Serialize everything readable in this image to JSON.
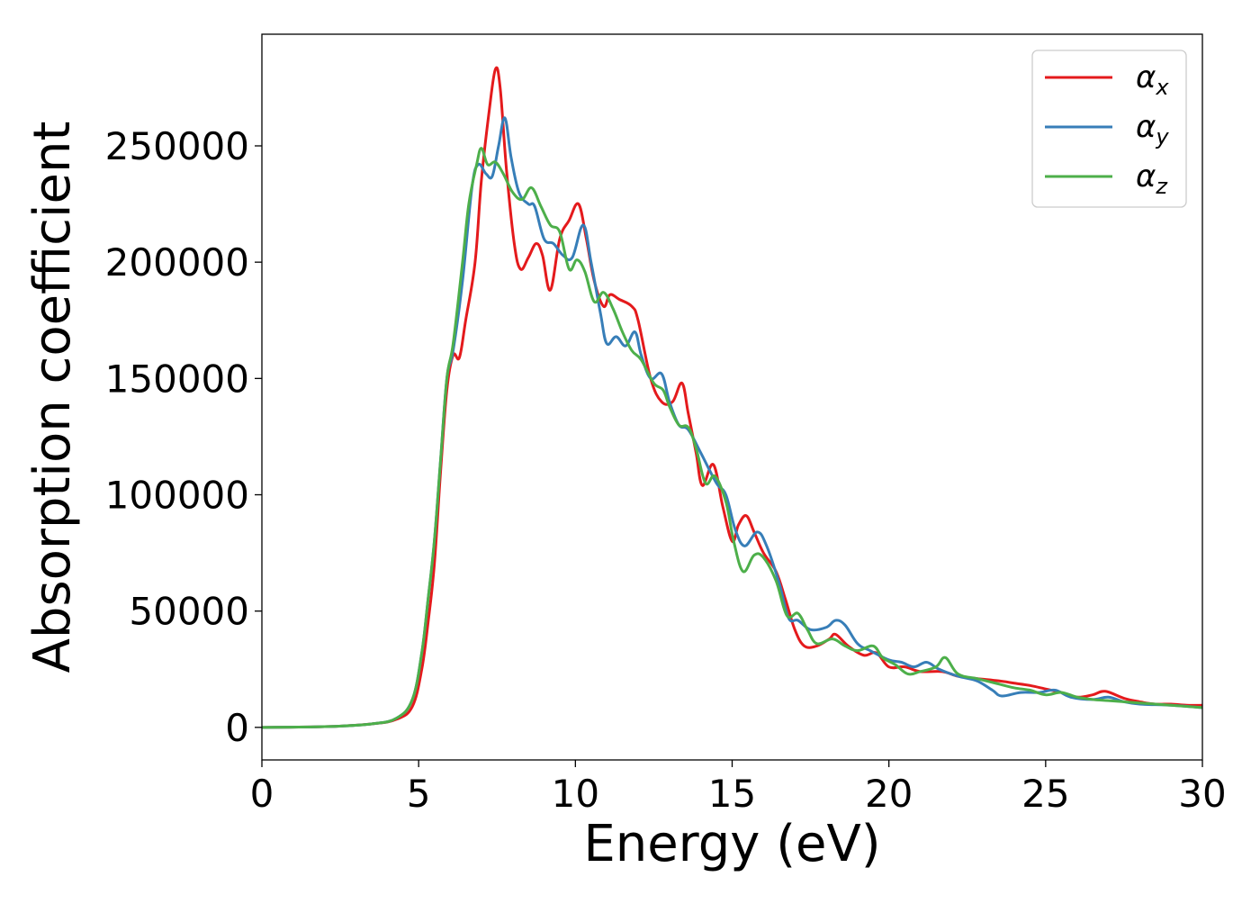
{
  "chart_data": {
    "type": "line",
    "title": "",
    "xlabel": "Energy (eV)",
    "ylabel": "Absorption coefficient",
    "xlim": [
      0,
      30
    ],
    "ylim": [
      -14000,
      298000
    ],
    "xticks": [
      0,
      5,
      10,
      15,
      20,
      25,
      30
    ],
    "xtick_labels": [
      "0",
      "5",
      "10",
      "15",
      "20",
      "25",
      "30"
    ],
    "yticks": [
      0,
      50000,
      100000,
      150000,
      200000,
      250000
    ],
    "ytick_labels": [
      "0",
      "50000",
      "100000",
      "150000",
      "200000",
      "250000"
    ],
    "grid": false,
    "legend_position": "top-right",
    "series": [
      {
        "name": "α_x",
        "legend_main": "α",
        "legend_sub": "x",
        "color": "#e41a1c",
        "points": [
          [
            0,
            0
          ],
          [
            2,
            300
          ],
          [
            3.5,
            1500
          ],
          [
            4.3,
            3500
          ],
          [
            4.8,
            9000
          ],
          [
            5.1,
            25000
          ],
          [
            5.3,
            45000
          ],
          [
            5.5,
            70000
          ],
          [
            5.7,
            110000
          ],
          [
            5.9,
            145000
          ],
          [
            6.1,
            160000
          ],
          [
            6.3,
            159000
          ],
          [
            6.5,
            175000
          ],
          [
            6.8,
            200000
          ],
          [
            7.0,
            235000
          ],
          [
            7.25,
            265000
          ],
          [
            7.45,
            283000
          ],
          [
            7.6,
            275000
          ],
          [
            7.8,
            240000
          ],
          [
            8.05,
            208000
          ],
          [
            8.25,
            197000
          ],
          [
            8.5,
            202000
          ],
          [
            8.75,
            208000
          ],
          [
            8.95,
            203000
          ],
          [
            9.2,
            188000
          ],
          [
            9.5,
            210000
          ],
          [
            9.8,
            218000
          ],
          [
            10.1,
            225000
          ],
          [
            10.35,
            210000
          ],
          [
            10.6,
            192000
          ],
          [
            10.9,
            181000
          ],
          [
            11.1,
            186000
          ],
          [
            11.4,
            184000
          ],
          [
            11.8,
            181000
          ],
          [
            12.0,
            175000
          ],
          [
            12.4,
            150000
          ],
          [
            12.75,
            140000
          ],
          [
            13.1,
            140000
          ],
          [
            13.4,
            148000
          ],
          [
            13.6,
            135000
          ],
          [
            13.85,
            118000
          ],
          [
            14.05,
            104000
          ],
          [
            14.4,
            113000
          ],
          [
            14.7,
            95000
          ],
          [
            15.0,
            80000
          ],
          [
            15.2,
            87000
          ],
          [
            15.45,
            91000
          ],
          [
            15.7,
            84000
          ],
          [
            16.0,
            75000
          ],
          [
            16.4,
            67000
          ],
          [
            16.7,
            55000
          ],
          [
            17.0,
            42000
          ],
          [
            17.3,
            35000
          ],
          [
            17.7,
            35000
          ],
          [
            18.1,
            38000
          ],
          [
            18.3,
            40000
          ],
          [
            18.7,
            35000
          ],
          [
            19.2,
            31000
          ],
          [
            19.6,
            32000
          ],
          [
            20.0,
            26000
          ],
          [
            20.5,
            26000
          ],
          [
            21.0,
            24000
          ],
          [
            21.7,
            24000
          ],
          [
            22.2,
            22000
          ],
          [
            22.8,
            21000
          ],
          [
            23.5,
            20000
          ],
          [
            24.0,
            19000
          ],
          [
            24.5,
            18000
          ],
          [
            25.0,
            16500
          ],
          [
            25.5,
            15000
          ],
          [
            26.0,
            13000
          ],
          [
            26.5,
            14000
          ],
          [
            26.9,
            15500
          ],
          [
            27.5,
            12500
          ],
          [
            28.0,
            11000
          ],
          [
            28.5,
            10000
          ],
          [
            29.0,
            10000
          ],
          [
            29.5,
            9500
          ],
          [
            30.0,
            9500
          ]
        ]
      },
      {
        "name": "α_y",
        "legend_main": "α",
        "legend_sub": "y",
        "color": "#377eb8",
        "points": [
          [
            0,
            0
          ],
          [
            2,
            300
          ],
          [
            3.5,
            1500
          ],
          [
            4.3,
            4000
          ],
          [
            4.8,
            12000
          ],
          [
            5.1,
            32000
          ],
          [
            5.3,
            55000
          ],
          [
            5.5,
            80000
          ],
          [
            5.7,
            115000
          ],
          [
            5.9,
            150000
          ],
          [
            6.1,
            162000
          ],
          [
            6.4,
            192000
          ],
          [
            6.7,
            232000
          ],
          [
            6.9,
            242000
          ],
          [
            7.15,
            238000
          ],
          [
            7.35,
            237000
          ],
          [
            7.55,
            250000
          ],
          [
            7.75,
            262000
          ],
          [
            7.95,
            245000
          ],
          [
            8.2,
            230000
          ],
          [
            8.5,
            225000
          ],
          [
            8.7,
            224000
          ],
          [
            9.0,
            210000
          ],
          [
            9.3,
            208000
          ],
          [
            9.6,
            203000
          ],
          [
            9.9,
            202000
          ],
          [
            10.25,
            216000
          ],
          [
            10.5,
            200000
          ],
          [
            10.8,
            178000
          ],
          [
            11.0,
            165000
          ],
          [
            11.3,
            168000
          ],
          [
            11.6,
            164000
          ],
          [
            11.9,
            170000
          ],
          [
            12.1,
            160000
          ],
          [
            12.4,
            150000
          ],
          [
            12.75,
            152000
          ],
          [
            13.0,
            140000
          ],
          [
            13.3,
            130000
          ],
          [
            13.6,
            128000
          ],
          [
            14.0,
            118000
          ],
          [
            14.5,
            105000
          ],
          [
            14.8,
            100000
          ],
          [
            15.1,
            85000
          ],
          [
            15.4,
            78000
          ],
          [
            15.8,
            84000
          ],
          [
            16.1,
            78000
          ],
          [
            16.5,
            62000
          ],
          [
            16.8,
            47000
          ],
          [
            17.1,
            46000
          ],
          [
            17.5,
            42000
          ],
          [
            18.0,
            43000
          ],
          [
            18.3,
            46000
          ],
          [
            18.6,
            44000
          ],
          [
            19.0,
            36000
          ],
          [
            19.4,
            33000
          ],
          [
            20.0,
            29000
          ],
          [
            20.4,
            28000
          ],
          [
            20.8,
            26000
          ],
          [
            21.2,
            28000
          ],
          [
            21.6,
            25000
          ],
          [
            22.2,
            22000
          ],
          [
            22.8,
            20000
          ],
          [
            23.3,
            16000
          ],
          [
            23.6,
            13500
          ],
          [
            24.2,
            15000
          ],
          [
            24.8,
            15000
          ],
          [
            25.3,
            16000
          ],
          [
            25.8,
            13000
          ],
          [
            26.5,
            12000
          ],
          [
            27.0,
            13000
          ],
          [
            27.5,
            11000
          ],
          [
            28.0,
            10000
          ],
          [
            29.0,
            9500
          ],
          [
            30.0,
            8500
          ]
        ]
      },
      {
        "name": "α_z",
        "legend_main": "α",
        "legend_sub": "z",
        "color": "#4daf4a",
        "points": [
          [
            0,
            0
          ],
          [
            2,
            300
          ],
          [
            3.5,
            1500
          ],
          [
            4.3,
            4000
          ],
          [
            4.8,
            12000
          ],
          [
            5.1,
            32000
          ],
          [
            5.3,
            55000
          ],
          [
            5.5,
            80000
          ],
          [
            5.7,
            115000
          ],
          [
            5.9,
            150000
          ],
          [
            6.1,
            165000
          ],
          [
            6.4,
            200000
          ],
          [
            6.6,
            225000
          ],
          [
            6.85,
            242000
          ],
          [
            7.0,
            249000
          ],
          [
            7.2,
            242000
          ],
          [
            7.45,
            243000
          ],
          [
            7.7,
            238000
          ],
          [
            8.0,
            230000
          ],
          [
            8.3,
            227000
          ],
          [
            8.6,
            232000
          ],
          [
            8.9,
            224000
          ],
          [
            9.2,
            216000
          ],
          [
            9.5,
            213000
          ],
          [
            9.8,
            197000
          ],
          [
            10.05,
            201000
          ],
          [
            10.3,
            196000
          ],
          [
            10.6,
            183000
          ],
          [
            10.9,
            187000
          ],
          [
            11.2,
            180000
          ],
          [
            11.5,
            170000
          ],
          [
            11.8,
            162000
          ],
          [
            12.1,
            158000
          ],
          [
            12.5,
            148000
          ],
          [
            12.8,
            145000
          ],
          [
            13.0,
            138000
          ],
          [
            13.3,
            130000
          ],
          [
            13.6,
            129000
          ],
          [
            13.85,
            120000
          ],
          [
            14.15,
            105000
          ],
          [
            14.45,
            108000
          ],
          [
            14.8,
            97000
          ],
          [
            15.05,
            80000
          ],
          [
            15.35,
            67000
          ],
          [
            15.7,
            74000
          ],
          [
            16.0,
            73000
          ],
          [
            16.4,
            63000
          ],
          [
            16.75,
            48000
          ],
          [
            17.1,
            49000
          ],
          [
            17.4,
            42000
          ],
          [
            17.7,
            36000
          ],
          [
            18.2,
            38000
          ],
          [
            18.6,
            35000
          ],
          [
            19.0,
            33000
          ],
          [
            19.5,
            35000
          ],
          [
            19.8,
            30000
          ],
          [
            20.2,
            27000
          ],
          [
            20.6,
            23000
          ],
          [
            21.0,
            24000
          ],
          [
            21.5,
            26000
          ],
          [
            21.8,
            30000
          ],
          [
            22.2,
            23000
          ],
          [
            22.8,
            21000
          ],
          [
            23.4,
            19000
          ],
          [
            24.0,
            17000
          ],
          [
            24.5,
            16000
          ],
          [
            25.0,
            14000
          ],
          [
            25.5,
            15000
          ],
          [
            26.0,
            13000
          ],
          [
            26.5,
            12000
          ],
          [
            27.0,
            11500
          ],
          [
            27.5,
            11000
          ],
          [
            28.0,
            10500
          ],
          [
            29.0,
            9500
          ],
          [
            30.0,
            8500
          ]
        ]
      }
    ]
  }
}
